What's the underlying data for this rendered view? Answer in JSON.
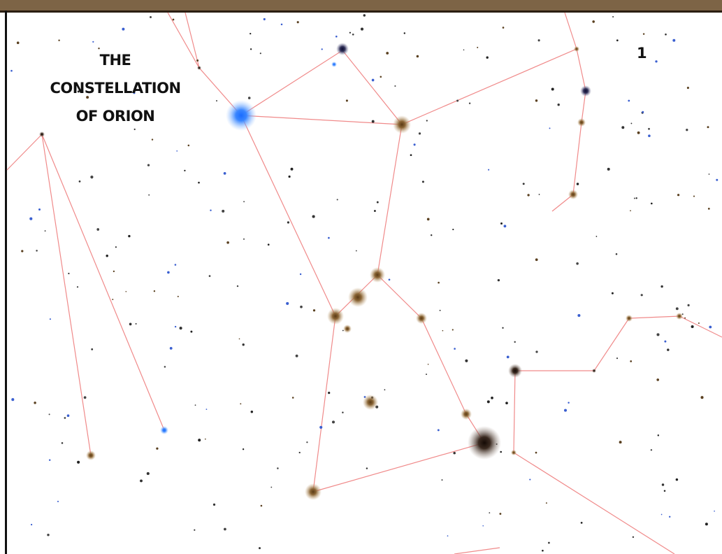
{
  "title_lines": [
    "THE",
    "CONSTELLATION",
    "OF ORION"
  ],
  "page_number": "1"
}
